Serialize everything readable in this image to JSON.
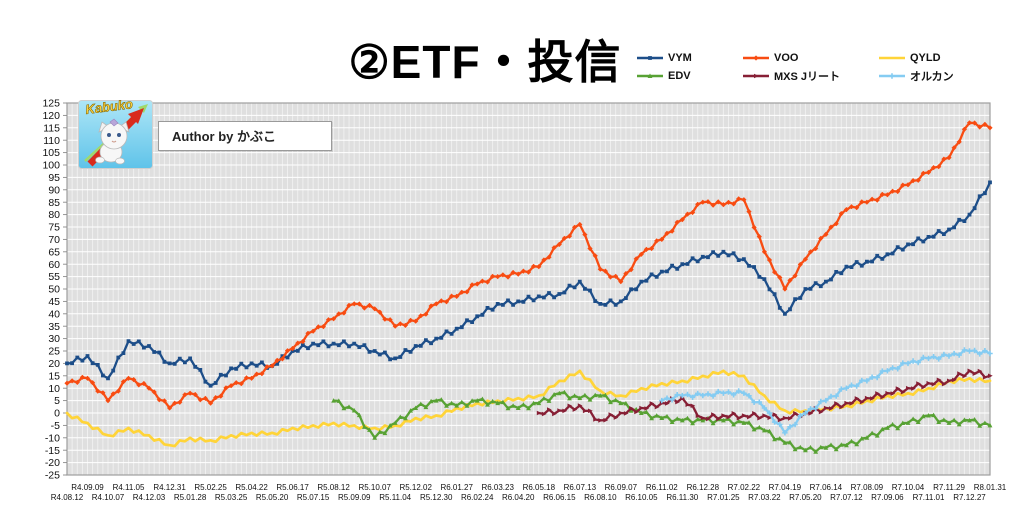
{
  "page_title": "②ETF・投信",
  "logo": {
    "text": "Kabuko"
  },
  "author_box": {
    "text": "Author by かぶこ"
  },
  "chart_data": {
    "type": "line",
    "title": "②ETF・投信",
    "grid": true,
    "legend_position": "top-right",
    "y_axis": {
      "min": -25,
      "max": 125,
      "step": 5
    },
    "x_labels": [
      "R4.08.12",
      "R4.09.09",
      "R4.10.07",
      "R4.11.05",
      "R4.12.03",
      "R4.12.31",
      "R5.01.28",
      "R5.02.25",
      "R5.03.25",
      "R5.04.22",
      "R5.05.20",
      "R5.06.17",
      "R5.07.15",
      "R5.08.12",
      "R5.09.09",
      "R5.10.07",
      "R5.11.04",
      "R5.12.02",
      "R5.12.30",
      "R6.01.27",
      "R6.02.24",
      "R6.03.23",
      "R6.04.20",
      "R6.05.18",
      "R6.06.15",
      "R6.07.13",
      "R6.08.10",
      "R6.09.07",
      "R6.10.05",
      "R6.11.02",
      "R6.11.30",
      "R6.12.28",
      "R7.01.25",
      "R7.02.22",
      "R7.03.22",
      "R7.04.19",
      "R7.05.20",
      "R7.06.14",
      "R7.07.12",
      "R7.08.09",
      "R7.09.06",
      "R7.10.04",
      "R7.11.01",
      "R7.11.29",
      "R7.12.27",
      "R8.01.31"
    ],
    "x_label_stagger": "even-index-bottom-row, odd-index-top-row",
    "colors": {
      "plot_bg": "#DFDFDF",
      "h_grid": "#FFFFFF",
      "v_grid": "#F1F1F1",
      "border": "#9E9E9E",
      "axis_text": "#111111"
    },
    "series": [
      {
        "name": "VYM",
        "color": "#1D4E89",
        "marker": "square",
        "values": [
          20,
          23,
          14,
          29,
          27,
          20,
          22,
          11,
          18,
          20,
          19,
          25,
          28,
          28,
          28,
          25,
          22,
          27,
          30,
          34,
          39,
          44,
          45,
          47,
          48,
          53,
          44,
          45,
          53,
          57,
          60,
          63,
          65,
          62,
          54,
          40,
          50,
          53,
          59,
          61,
          64,
          68,
          71,
          74,
          80,
          93
        ]
      },
      {
        "name": "VOO",
        "color": "#F84C12",
        "marker": "diamond",
        "values": [
          12,
          14,
          5,
          14,
          10,
          2,
          8,
          4,
          11,
          14,
          19,
          26,
          33,
          38,
          44,
          42,
          35,
          37,
          44,
          47,
          52,
          55,
          56,
          59,
          68,
          76,
          58,
          53,
          64,
          70,
          78,
          85,
          84,
          86,
          65,
          50,
          62,
          72,
          82,
          85,
          88,
          92,
          97,
          103,
          117,
          115
        ]
      },
      {
        "name": "QYLD",
        "color": "#FFD438",
        "marker": "none",
        "values": [
          0,
          -4,
          -9,
          -6,
          -9,
          -13,
          -10,
          -11,
          -9,
          -8,
          -8,
          -6,
          -5,
          -4,
          -5,
          -6,
          -5,
          -2,
          -1,
          2,
          4,
          5,
          6,
          7,
          13,
          17,
          9,
          7,
          10,
          12,
          13,
          15,
          17,
          15,
          7,
          1,
          1,
          2,
          3,
          5,
          7,
          8,
          10,
          13,
          14,
          13
        ]
      },
      {
        "name": "EDV",
        "color": "#58A234",
        "marker": "triangle",
        "values": [
          null,
          null,
          null,
          null,
          null,
          null,
          null,
          null,
          null,
          null,
          null,
          null,
          null,
          5,
          1,
          -10,
          -4,
          2,
          5,
          3,
          5,
          4,
          2,
          4,
          8,
          6,
          7,
          4,
          0,
          -2,
          -3,
          -3,
          -3,
          -4,
          -7,
          -12,
          -15,
          -14,
          -13,
          -10,
          -6,
          -4,
          -1,
          -4,
          -3,
          -5
        ]
      },
      {
        "name": "MXS Jリート",
        "color": "#871F35",
        "marker": "triangle-right",
        "values": [
          null,
          null,
          null,
          null,
          null,
          null,
          null,
          null,
          null,
          null,
          null,
          null,
          null,
          null,
          null,
          null,
          null,
          null,
          null,
          null,
          null,
          null,
          null,
          0,
          1,
          3,
          -3,
          0,
          2,
          4,
          6,
          -2,
          -1,
          -1,
          -1,
          -2,
          0,
          2,
          4,
          6,
          8,
          10,
          12,
          13,
          17,
          15
        ]
      },
      {
        "name": "オルカン",
        "color": "#85CCF2",
        "marker": "plus",
        "values": [
          null,
          null,
          null,
          null,
          null,
          null,
          null,
          null,
          null,
          null,
          null,
          null,
          null,
          null,
          null,
          null,
          null,
          null,
          null,
          null,
          null,
          null,
          null,
          null,
          null,
          null,
          null,
          null,
          null,
          5,
          7,
          7,
          8,
          8,
          2,
          -8,
          0,
          5,
          10,
          13,
          17,
          20,
          22,
          23,
          25,
          24
        ]
      }
    ]
  }
}
